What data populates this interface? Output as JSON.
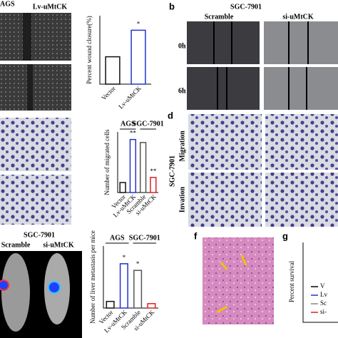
{
  "panel_a": {
    "cell_line": "AGS",
    "column": "Lv-uMtCK"
  },
  "panel_b": {
    "letter": "b",
    "cell_line": "SGC-7901",
    "columns": [
      "Scramble",
      "si-uMtCK"
    ],
    "rows": [
      "0h",
      "6h"
    ]
  },
  "panel_d": {
    "letter": "d",
    "cell_line": "SGC-7901",
    "rows": [
      "Migration",
      "Invation"
    ]
  },
  "panel_e": {
    "cell_line": "SGC-7901",
    "columns": [
      "Scramble",
      "si-uMtCK"
    ]
  },
  "panel_f": {
    "letter": "f"
  },
  "panel_g": {
    "letter": "g",
    "y_label": "Percent survival",
    "legend": [
      "V",
      "Lv",
      "Sc",
      "si-"
    ]
  },
  "chart_data": [
    {
      "type": "bar",
      "y_label": "Percent wound closure(%)",
      "categories": [
        "Vector",
        "Lv-uMtCK"
      ],
      "values": [
        32,
        63
      ],
      "colors": [
        "#111111",
        "#2233cc"
      ],
      "sig_labels": [
        null,
        "*"
      ],
      "ylim": [
        0,
        80
      ]
    },
    {
      "type": "bar",
      "y_label": "Number of migrated cells",
      "groups": [
        "AGS",
        "SGC-7901"
      ],
      "categories": [
        "Vector",
        "Lv-uMtCK",
        "Scramble",
        "si-uMtCK"
      ],
      "values": [
        33,
        175,
        165,
        50
      ],
      "colors": [
        "#111111",
        "#2233cc",
        "#555555",
        "#dd2222"
      ],
      "sig_labels": [
        null,
        "**",
        null,
        "**"
      ],
      "ylim": [
        0,
        200
      ]
    },
    {
      "type": "bar",
      "y_label": "Number of liver metastasis per mice",
      "groups": [
        "AGS",
        "SGC-7901"
      ],
      "categories": [
        "Vector",
        "Lv-uMtCK",
        "Scramble",
        "si-uMtCK"
      ],
      "values": [
        1.5,
        10,
        8.5,
        1
      ],
      "colors": [
        "#111111",
        "#2233cc",
        "#555555",
        "#dd2222"
      ],
      "sig_labels": [
        null,
        "*",
        "*",
        null
      ],
      "ylim": [
        0,
        14
      ]
    }
  ]
}
